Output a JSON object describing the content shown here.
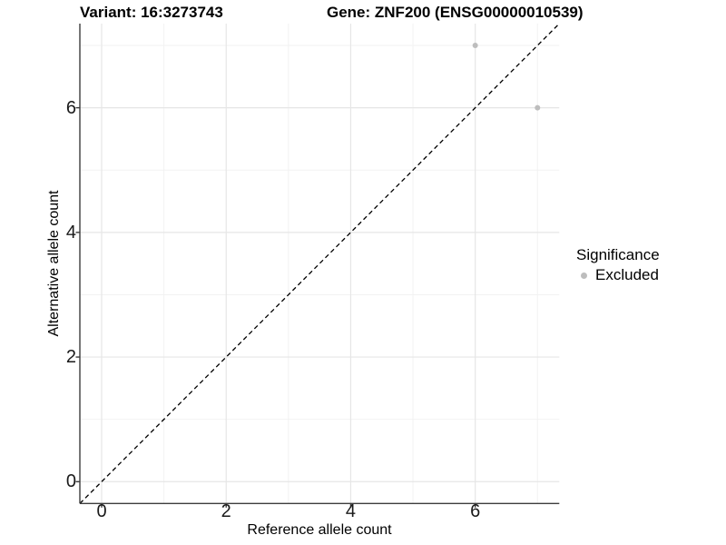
{
  "title": {
    "variant": "Variant: 16:3273743",
    "gene": "Gene: ZNF200 (ENSG00000010539)"
  },
  "axes": {
    "x_label": "Reference allele count",
    "y_label": "Alternative allele count"
  },
  "legend": {
    "title": "Significance",
    "items": [
      {
        "label": "Excluded",
        "color": "#bdbdbd"
      }
    ]
  },
  "chart_data": {
    "type": "scatter",
    "title": "Variant: 16:3273743    Gene: ZNF200 (ENSG00000010539)",
    "xlabel": "Reference allele count",
    "ylabel": "Alternative allele count",
    "xlim": [
      -0.35,
      7.35
    ],
    "ylim": [
      -0.35,
      7.35
    ],
    "x_ticks": [
      0,
      2,
      4,
      6
    ],
    "y_ticks": [
      0,
      2,
      4,
      6
    ],
    "x_minor": [
      1,
      3,
      5,
      7
    ],
    "y_minor": [
      1,
      3,
      5,
      7
    ],
    "grid": true,
    "legend_position": "right",
    "series": [
      {
        "name": "Excluded",
        "color": "#bdbdbd",
        "points": [
          {
            "x": 6,
            "y": 7
          },
          {
            "x": 7,
            "y": 6
          }
        ]
      }
    ],
    "reference_line": {
      "type": "identity y=x",
      "style": "dashed",
      "color": "#000000"
    }
  },
  "colors": {
    "background": "#ffffff",
    "grid_major": "#e6e6e6",
    "grid_minor": "#f2f2f2",
    "axis_line": "#3c3c3c",
    "tick_text": "#1a1a1a",
    "point": "#bdbdbd",
    "dashed_line": "#000000"
  }
}
